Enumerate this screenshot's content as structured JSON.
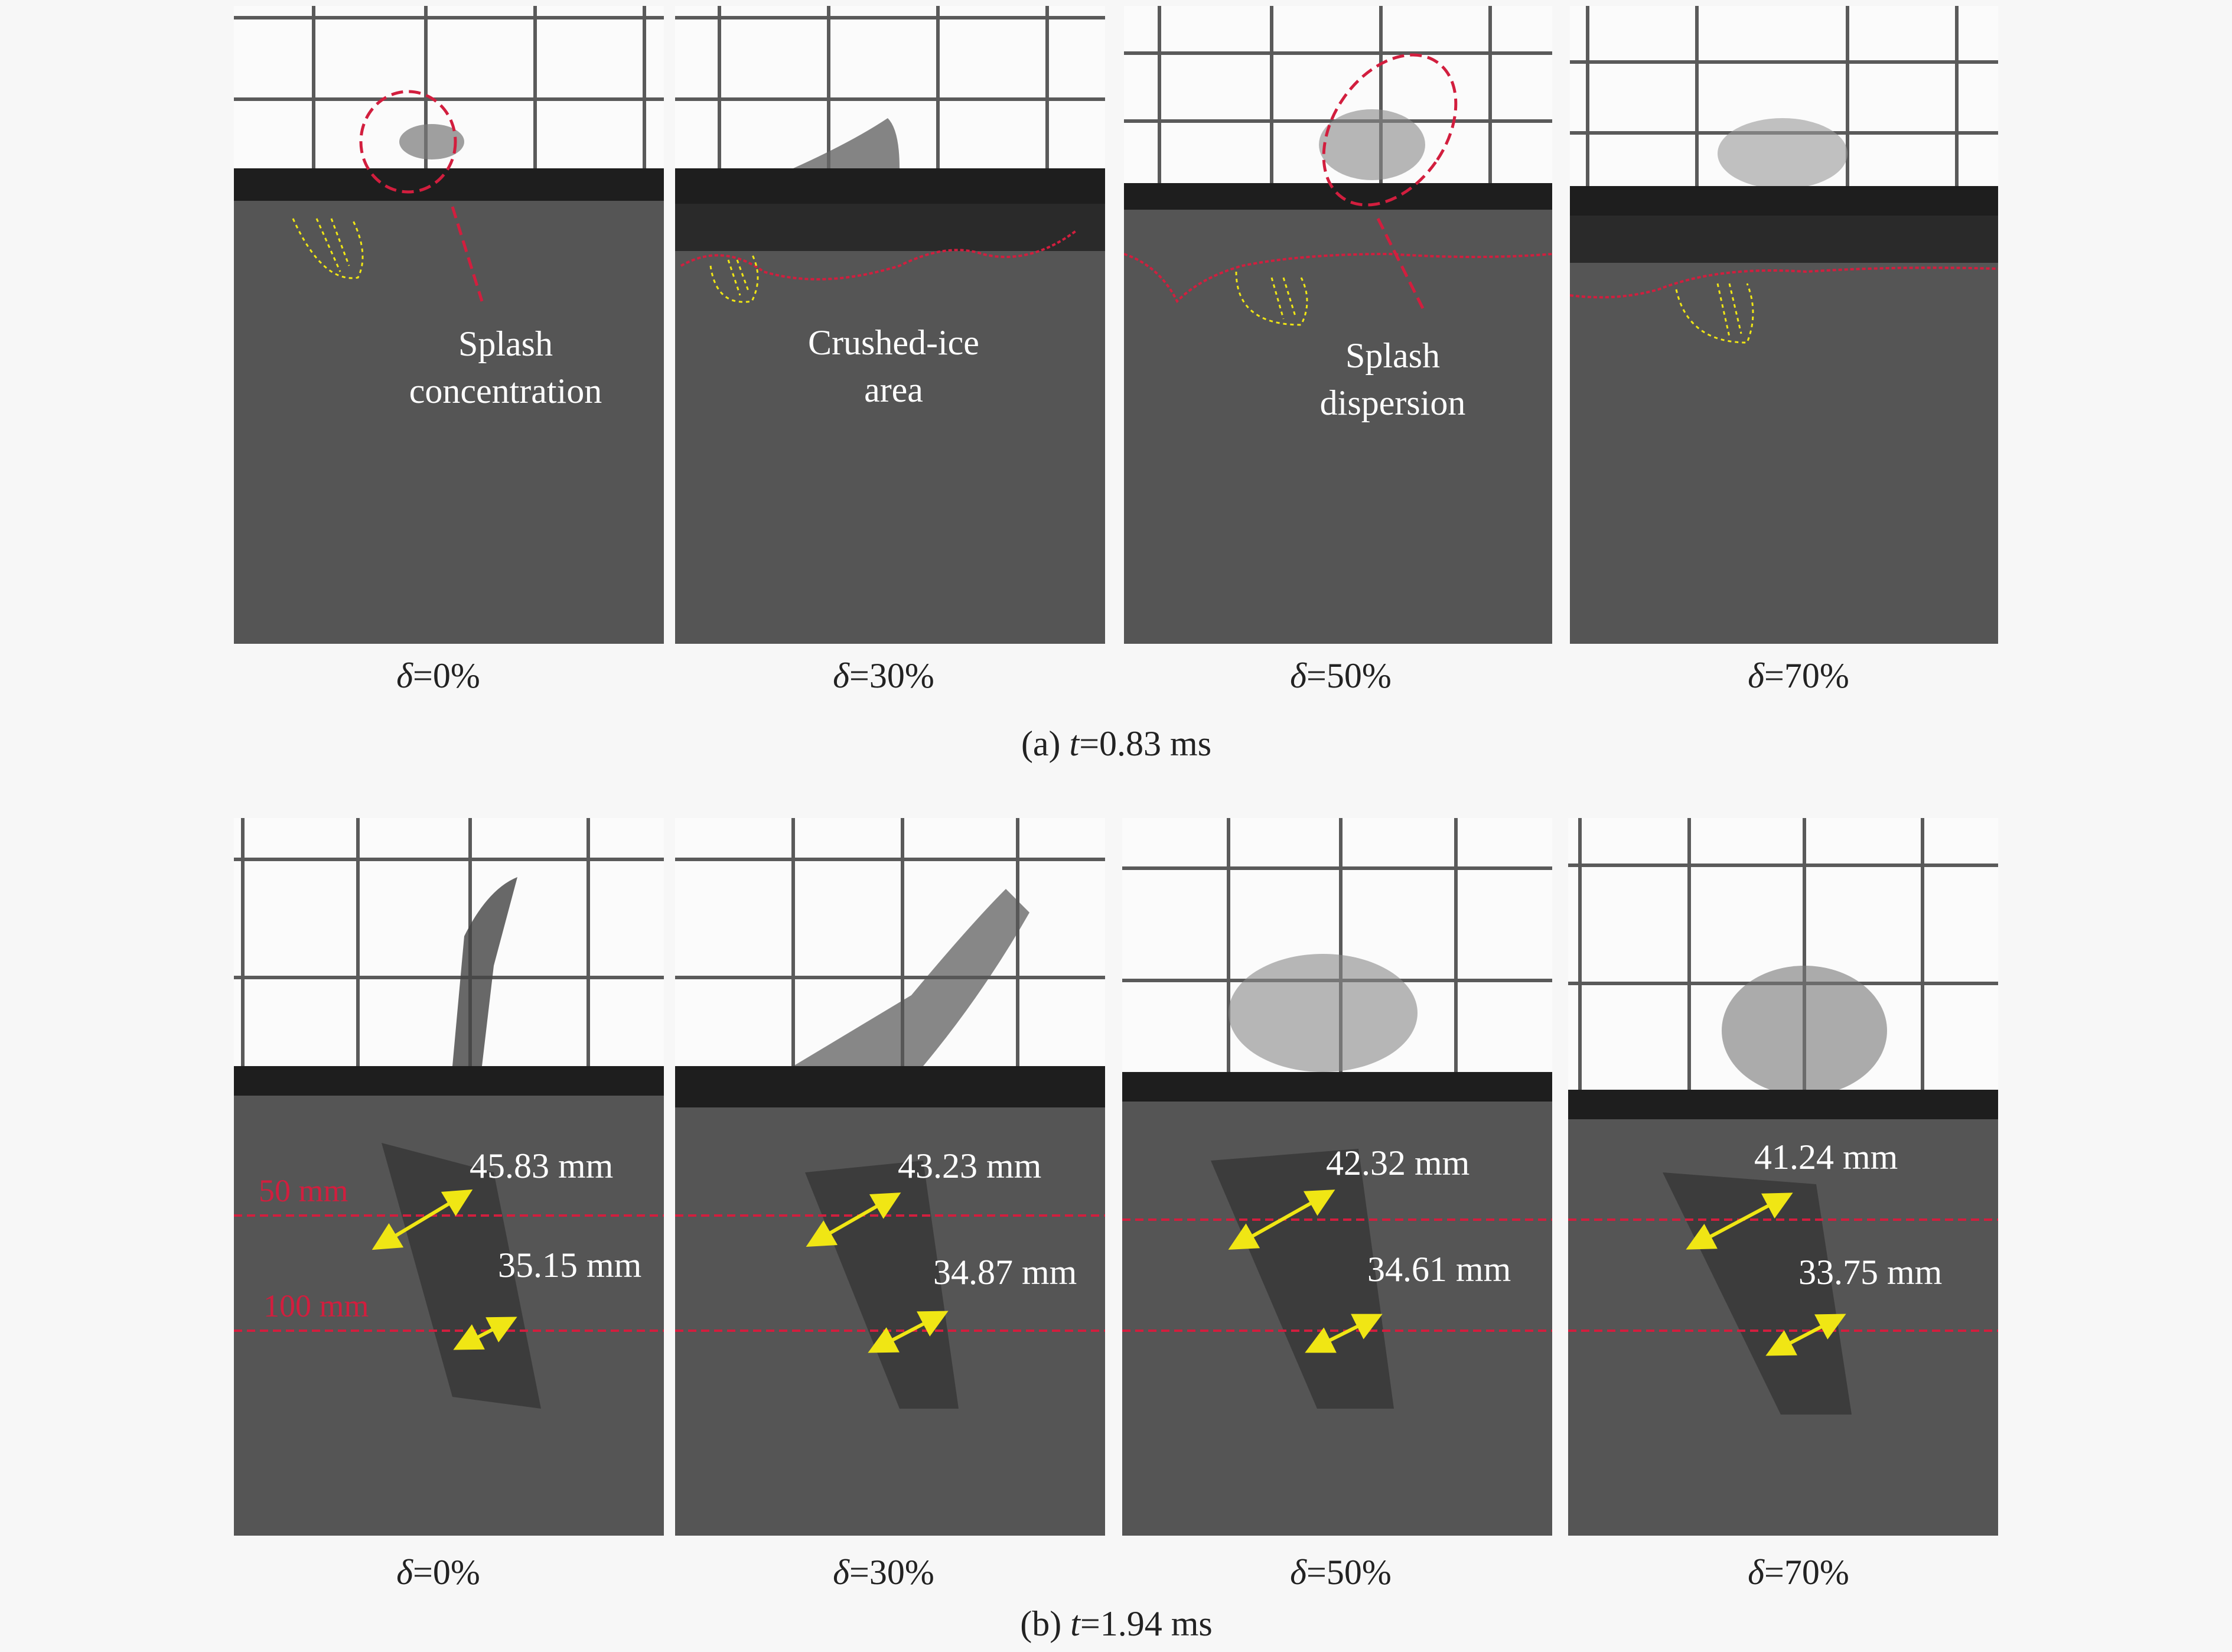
{
  "row_a": {
    "caption_prefix": "(a) ",
    "caption_var": "t",
    "caption_value": "=0.83 ms",
    "panels": [
      {
        "label_var": "δ",
        "label_value": "=0%"
      },
      {
        "label_var": "δ",
        "label_value": "=30%"
      },
      {
        "label_var": "δ",
        "label_value": "=50%"
      },
      {
        "label_var": "δ",
        "label_value": "=70%"
      }
    ],
    "annotations": {
      "splash_concentration": [
        "Splash",
        "concentration"
      ],
      "crushed_ice_area": [
        "Crushed-ice",
        "area"
      ],
      "splash_dispersion": [
        "Splash",
        "dispersion"
      ]
    }
  },
  "row_b": {
    "caption_prefix": "(b) ",
    "caption_var": "t",
    "caption_value": "=1.94 ms",
    "panels": [
      {
        "label_var": "δ",
        "label_value": "=0%",
        "upper_mm": "45.83 mm",
        "lower_mm": "35.15 mm"
      },
      {
        "label_var": "δ",
        "label_value": "=30%",
        "upper_mm": "43.23 mm",
        "lower_mm": "34.87 mm"
      },
      {
        "label_var": "δ",
        "label_value": "=50%",
        "upper_mm": "42.32 mm",
        "lower_mm": "34.61 mm"
      },
      {
        "label_var": "δ",
        "label_value": "=70%",
        "upper_mm": "41.24 mm",
        "lower_mm": "33.75 mm"
      }
    ],
    "depth_labels": {
      "upper": "50 mm",
      "lower": "100 mm"
    }
  },
  "colors": {
    "water": "#555555",
    "air": "#fbfbfb",
    "grid": "#5a5a5a",
    "ice_band": "#1e1e1e",
    "red_marker": "#d21e3e",
    "yellow_marker": "#f0e614"
  }
}
